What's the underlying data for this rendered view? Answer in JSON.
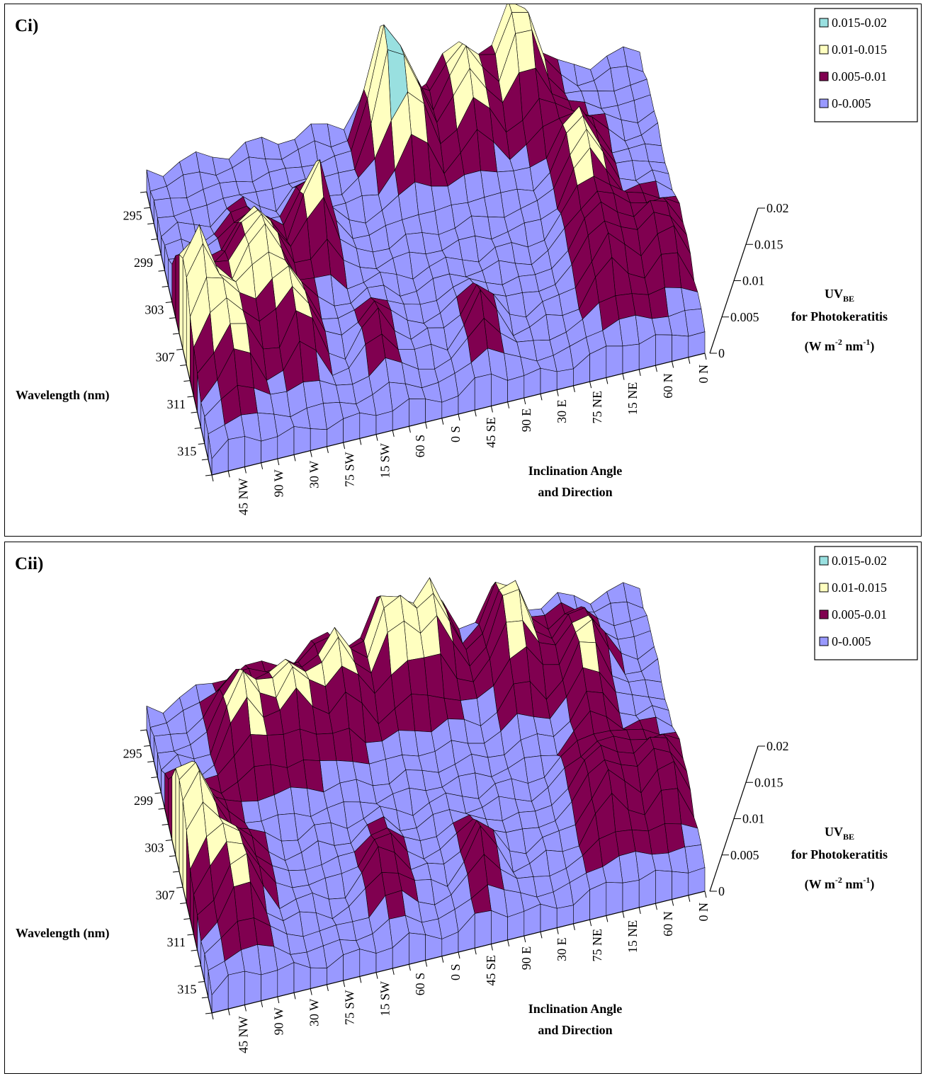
{
  "chart_data": [
    {
      "type": "surface3d",
      "panel_label": "Ci)",
      "y_axis_label": "Wavelength (nm)",
      "y_ticks": [
        "295",
        "299",
        "303",
        "307",
        "311",
        "315"
      ],
      "x_axis_label_lines": [
        "Inclination Angle",
        "and Direction"
      ],
      "x_ticks": [
        "45 NW",
        "90 W",
        "30 W",
        "75 SW",
        "15 SW",
        "60 S",
        "0 S",
        "45 SE",
        "90 E",
        "30 E",
        "75 NE",
        "15 NE",
        "60 N",
        "0 N"
      ],
      "z_axis": {
        "base": "UV",
        "subscript": "BE",
        "line2": "for Photokeratitis",
        "line3": [
          "(W m",
          "-2",
          " nm",
          "-1",
          ")"
        ]
      },
      "z_ticks": [
        "0",
        "0.005",
        "0.01",
        "0.015",
        "0.02"
      ],
      "zlim": [
        0,
        0.02
      ],
      "legend": [
        {
          "label": "0.015-0.02",
          "color": "#99E0E0"
        },
        {
          "label": "0.01-0.015",
          "color": "#FFFFC0"
        },
        {
          "label": "0.005-0.01",
          "color": "#800050"
        },
        {
          "label": "0-0.005",
          "color": "#9999FF"
        }
      ],
      "peaks": [
        {
          "x": 0.6,
          "y": 8,
          "h": 0.012,
          "w": 1.2
        },
        {
          "x": 2.2,
          "y": 5,
          "h": 0.009,
          "w": 1.6
        },
        {
          "x": 4.8,
          "y": 9,
          "h": 0.011,
          "w": 1.6
        },
        {
          "x": 6.3,
          "y": 5,
          "h": 0.008,
          "w": 1.3
        },
        {
          "x": 8.7,
          "y": 11,
          "h": 0.013,
          "w": 1.0
        },
        {
          "x": 13.8,
          "y": 16,
          "h": 0.016,
          "w": 0.9
        },
        {
          "x": 15.3,
          "y": 15,
          "h": 0.013,
          "w": 1.2
        },
        {
          "x": 19.0,
          "y": 16,
          "h": 0.011,
          "w": 1.6
        },
        {
          "x": 22.5,
          "y": 17,
          "h": 0.014,
          "w": 1.3
        },
        {
          "x": 24.8,
          "y": 11,
          "h": 0.008,
          "w": 1.6
        },
        {
          "x": 25.0,
          "y": 5,
          "h": 0.0075,
          "w": 1.8
        },
        {
          "x": 28.5,
          "y": 5,
          "h": 0.0072,
          "w": 1.5
        },
        {
          "x": 17.0,
          "y": 3,
          "h": 0.006,
          "w": 1.2
        },
        {
          "x": 11.0,
          "y": 4,
          "h": 0.005,
          "w": 1.2
        }
      ],
      "base_level": 0.0025
    },
    {
      "type": "surface3d",
      "panel_label": "Cii)",
      "y_axis_label": "Wavelength (nm)",
      "y_ticks": [
        "295",
        "299",
        "303",
        "307",
        "311",
        "315"
      ],
      "x_axis_label_lines": [
        "Inclination Angle",
        "and Direction"
      ],
      "x_ticks": [
        "45 NW",
        "90 W",
        "30 W",
        "75 SW",
        "15 SW",
        "60 S",
        "0 S",
        "45 SE",
        "90 E",
        "30 E",
        "75 NE",
        "15 NE",
        "60 N",
        "0 N"
      ],
      "z_axis": {
        "base": "UV",
        "subscript": "BE",
        "line2": "for Photokeratitis",
        "line3": [
          "(W m",
          "-2",
          " nm",
          "-1",
          ")"
        ]
      },
      "z_ticks": [
        "0",
        "0.005",
        "0.01",
        "0.015",
        "0.02"
      ],
      "zlim": [
        0,
        0.02
      ],
      "legend": [
        {
          "label": "0.015-0.02",
          "color": "#99E0E0"
        },
        {
          "label": "0.01-0.015",
          "color": "#FFFFC0"
        },
        {
          "label": "0.005-0.01",
          "color": "#800050"
        },
        {
          "label": "0-0.005",
          "color": "#9999FF"
        }
      ],
      "peaks": [
        {
          "x": 0.6,
          "y": 9,
          "h": 0.012,
          "w": 1.3
        },
        {
          "x": 2.5,
          "y": 5,
          "h": 0.009,
          "w": 1.7
        },
        {
          "x": 5.0,
          "y": 14,
          "h": 0.01,
          "w": 1.5
        },
        {
          "x": 8.0,
          "y": 14,
          "h": 0.009,
          "w": 1.5
        },
        {
          "x": 11.0,
          "y": 15,
          "h": 0.01,
          "w": 1.4
        },
        {
          "x": 14.5,
          "y": 16,
          "h": 0.012,
          "w": 1.3
        },
        {
          "x": 17.0,
          "y": 16,
          "h": 0.011,
          "w": 1.3
        },
        {
          "x": 21.5,
          "y": 15,
          "h": 0.012,
          "w": 1.4
        },
        {
          "x": 25.5,
          "y": 13,
          "h": 0.009,
          "w": 1.5
        },
        {
          "x": 25.0,
          "y": 5,
          "h": 0.0075,
          "w": 1.8
        },
        {
          "x": 28.5,
          "y": 5,
          "h": 0.0072,
          "w": 1.5
        },
        {
          "x": 17.0,
          "y": 3,
          "h": 0.006,
          "w": 1.2
        },
        {
          "x": 11.5,
          "y": 4,
          "h": 0.0055,
          "w": 1.2
        }
      ],
      "base_level": 0.0028
    }
  ]
}
